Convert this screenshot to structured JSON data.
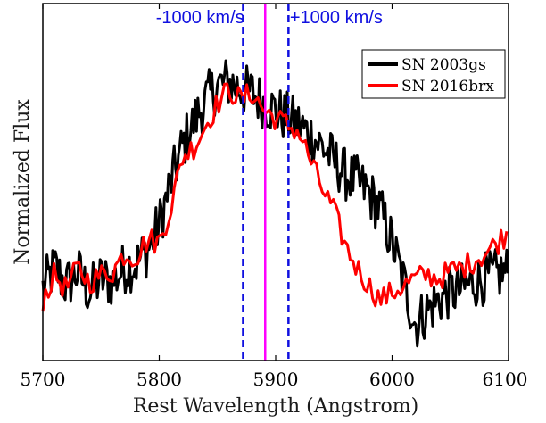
{
  "chart_data": {
    "type": "line",
    "xlabel": "Rest Wavelength (Angstrom)",
    "ylabel": "Normalized Flux",
    "xlim": [
      5700,
      6100
    ],
    "ylim": [
      0,
      1
    ],
    "xticks": [
      5700,
      5800,
      5900,
      6000,
      6100
    ],
    "yticks_shown": false,
    "grid": false,
    "legend_position": "top-right",
    "annotations": [
      {
        "text": "-1000 km/s",
        "x": 5835
      },
      {
        "text": "+1000 km/s",
        "x": 5952
      }
    ],
    "reference_lines": [
      {
        "name": "-1000 km/s",
        "x": 5872,
        "style": "dashed",
        "color": "#1010e0"
      },
      {
        "name": "rest",
        "x": 5891,
        "style": "solid",
        "color": "#ff00ff"
      },
      {
        "name": "+1000 km/s",
        "x": 5911,
        "style": "dashed",
        "color": "#1010e0"
      }
    ],
    "series": [
      {
        "name": "SN 2003gs",
        "color": "#000000",
        "x": [
          5700,
          5710,
          5720,
          5730,
          5740,
          5750,
          5760,
          5770,
          5780,
          5790,
          5800,
          5810,
          5820,
          5830,
          5840,
          5850,
          5860,
          5870,
          5880,
          5890,
          5900,
          5910,
          5920,
          5930,
          5940,
          5950,
          5960,
          5970,
          5980,
          5990,
          6000,
          6010,
          6020,
          6030,
          6040,
          6050,
          6060,
          6070,
          6080,
          6090,
          6100
        ],
        "y": [
          0.2,
          0.26,
          0.21,
          0.25,
          0.19,
          0.23,
          0.22,
          0.26,
          0.27,
          0.31,
          0.38,
          0.5,
          0.6,
          0.67,
          0.73,
          0.77,
          0.78,
          0.76,
          0.75,
          0.72,
          0.7,
          0.68,
          0.66,
          0.63,
          0.6,
          0.56,
          0.52,
          0.5,
          0.47,
          0.42,
          0.33,
          0.22,
          0.1,
          0.14,
          0.17,
          0.19,
          0.2,
          0.22,
          0.23,
          0.24,
          0.25
        ]
      },
      {
        "name": "SN 2016brx",
        "color": "#ff0000",
        "x": [
          5700,
          5710,
          5720,
          5730,
          5740,
          5750,
          5760,
          5770,
          5780,
          5790,
          5800,
          5810,
          5820,
          5830,
          5840,
          5850,
          5860,
          5870,
          5880,
          5890,
          5900,
          5910,
          5920,
          5930,
          5940,
          5950,
          5960,
          5970,
          5980,
          5990,
          6000,
          6010,
          6020,
          6030,
          6040,
          6050,
          6060,
          6070,
          6080,
          6090,
          6100
        ],
        "y": [
          0.17,
          0.24,
          0.2,
          0.26,
          0.22,
          0.24,
          0.25,
          0.3,
          0.29,
          0.34,
          0.33,
          0.43,
          0.57,
          0.6,
          0.66,
          0.72,
          0.76,
          0.73,
          0.75,
          0.7,
          0.68,
          0.66,
          0.64,
          0.56,
          0.48,
          0.42,
          0.32,
          0.26,
          0.21,
          0.17,
          0.19,
          0.21,
          0.23,
          0.24,
          0.23,
          0.25,
          0.26,
          0.28,
          0.3,
          0.33,
          0.36
        ]
      }
    ]
  }
}
